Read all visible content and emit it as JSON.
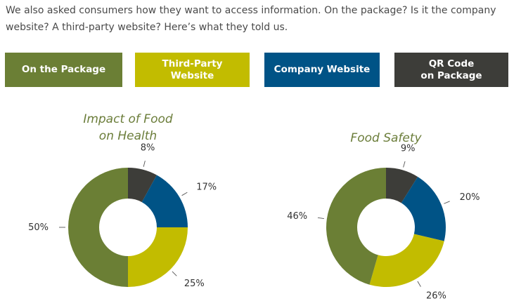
{
  "intro_text": "We also asked consumers how they want to access information. On the package? Is it the company website? A third-party website? Here’s what they told us.",
  "legend": [
    {
      "label": "On the Package",
      "color": "#6b7f35"
    },
    {
      "label": "Third-Party Website",
      "color": "#c2bc00"
    },
    {
      "label": "Company Website",
      "color": "#005386"
    },
    {
      "label": "QR Code\non Package",
      "color": "#3d3d39"
    }
  ],
  "chart_data": [
    {
      "type": "pie",
      "donut": true,
      "title": "Impact of Food\non Health",
      "categories": [
        "QR Code on Package",
        "Company Website",
        "Third-Party Website",
        "On the Package"
      ],
      "values": [
        8,
        17,
        25,
        50
      ],
      "labels": [
        "8%",
        "17%",
        "25%",
        "50%"
      ],
      "colors": [
        "#3d3d39",
        "#005386",
        "#c2bc00",
        "#6b7f35"
      ],
      "unit": "%"
    },
    {
      "type": "pie",
      "donut": true,
      "title": "Food Safety",
      "categories": [
        "QR Code on Package",
        "Company Website",
        "Third-Party Website",
        "On the Package"
      ],
      "values": [
        9,
        20,
        26,
        46
      ],
      "labels": [
        "9%",
        "20%",
        "26%",
        "46%"
      ],
      "colors": [
        "#3d3d39",
        "#005386",
        "#c2bc00",
        "#6b7f35"
      ],
      "unit": "%"
    }
  ]
}
